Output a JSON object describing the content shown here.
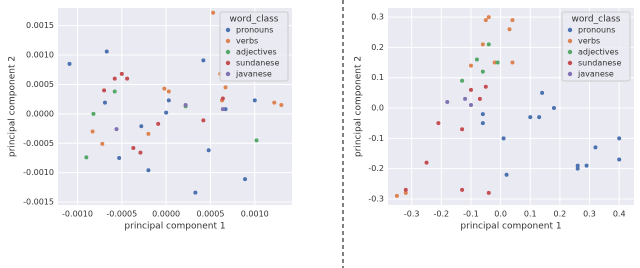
{
  "chart_data": [
    {
      "type": "scatter",
      "xlabel": "principal component 1",
      "ylabel": "principal component 2",
      "xlim": [
        -0.00122,
        0.00142
      ],
      "ylim": [
        -0.00155,
        0.0018
      ],
      "xticks": [
        {
          "value": -0.001,
          "label": "-0.0010"
        },
        -0.0005,
        {
          "value": 0,
          "label": "0.0000"
        },
        0.0005,
        {
          "value": 0.001,
          "label": "0.0010"
        }
      ],
      "yticks": [
        -0.0015,
        {
          "value": -0.001,
          "label": "-0.0010"
        },
        -0.0005,
        {
          "value": 0,
          "label": "0.0000"
        },
        0.0005,
        {
          "value": 0.001,
          "label": "0.0010"
        },
        0.0015
      ],
      "grid": true,
      "legend_title": "word_class",
      "legend_loc": "upper right",
      "series": [
        {
          "name": "pronouns",
          "color": "#4c72b0",
          "x": [
            -0.00109,
            -0.00067,
            -0.00069,
            -0.00028,
            -0.0002,
            0.0,
            3e-05,
            0.00042,
            0.00048,
            0.00033,
            0.001,
            0.00089,
            0.00067,
            -0.00053
          ],
          "y": [
            0.00085,
            0.00106,
            0.00019,
            -0.00021,
            -0.00096,
            2e-05,
            0.00023,
            0.00091,
            -0.00062,
            -0.00134,
            0.00023,
            -0.00111,
            8e-05,
            -0.00075
          ]
        },
        {
          "name": "verbs",
          "color": "#dd8452",
          "x": [
            0.00053,
            -2e-05,
            3e-05,
            0.00061,
            0.00063,
            0.00122,
            0.0013,
            -0.0002,
            -0.00083,
            -0.00072,
            0.00067
          ],
          "y": [
            0.00172,
            0.00043,
            0.00038,
            0.00068,
            0.00023,
            0.00019,
            0.00015,
            -0.00034,
            -0.0003,
            -0.00051,
            0.00045
          ]
        },
        {
          "name": "adjectives",
          "color": "#55a868",
          "x": [
            -0.00082,
            -0.00058,
            -0.0009,
            0.00022,
            0.00102
          ],
          "y": [
            0.0,
            0.00038,
            -0.00074,
            0.00013,
            -0.00045
          ]
        },
        {
          "name": "sundanese",
          "color": "#c44e52",
          "x": [
            -0.0007,
            -0.00058,
            -0.0005,
            -0.00044,
            -0.00037,
            -0.00029,
            -9e-05,
            0.00042,
            0.00064
          ],
          "y": [
            0.0004,
            0.0006,
            0.00068,
            0.0006,
            -0.00058,
            -0.00066,
            -0.00017,
            -0.00011,
            0.00026
          ]
        },
        {
          "name": "javanese",
          "color": "#8172b3",
          "x": [
            -0.00056,
            0.00022,
            0.00064
          ],
          "y": [
            -0.00026,
            0.00015,
            8e-05
          ]
        }
      ]
    },
    {
      "type": "scatter",
      "xlabel": "principal component 1",
      "ylabel": "principal component 2",
      "xlim": [
        -0.38,
        0.45
      ],
      "ylim": [
        -0.32,
        0.33
      ],
      "xticks": [
        -0.3,
        -0.2,
        -0.1,
        {
          "value": 0,
          "label": "0.0"
        },
        0.1,
        0.2,
        0.3,
        0.4
      ],
      "yticks": [
        -0.3,
        -0.2,
        -0.1,
        {
          "value": 0,
          "label": "0.0"
        },
        0.1,
        0.2,
        0.3
      ],
      "grid": true,
      "legend_title": "word_class",
      "legend_loc": "upper right",
      "series": [
        {
          "name": "pronouns",
          "color": "#4c72b0",
          "x": [
            -0.06,
            -0.06,
            0.01,
            0.02,
            0.1,
            0.14,
            0.13,
            0.18,
            0.26,
            0.26,
            0.29,
            0.32,
            0.4,
            0.4
          ],
          "y": [
            -0.02,
            -0.05,
            -0.1,
            -0.22,
            -0.03,
            0.05,
            -0.03,
            0.0,
            -0.19,
            -0.2,
            -0.19,
            -0.13,
            -0.1,
            -0.17
          ]
        },
        {
          "name": "verbs",
          "color": "#dd8452",
          "x": [
            -0.05,
            -0.04,
            0.04,
            0.03,
            0.04,
            -0.02,
            -0.06,
            -0.35,
            -0.32,
            -0.1
          ],
          "y": [
            0.29,
            0.3,
            0.29,
            0.26,
            0.15,
            0.15,
            0.21,
            -0.29,
            -0.28,
            0.14
          ]
        },
        {
          "name": "adjectives",
          "color": "#55a868",
          "x": [
            -0.13,
            -0.08,
            -0.04,
            -0.01,
            -0.06
          ],
          "y": [
            0.09,
            0.16,
            0.21,
            0.15,
            0.12
          ]
        },
        {
          "name": "sundanese",
          "color": "#c44e52",
          "x": [
            -0.32,
            -0.25,
            -0.21,
            -0.13,
            -0.13,
            -0.1,
            -0.07,
            -0.04,
            -0.05
          ],
          "y": [
            -0.27,
            -0.18,
            -0.05,
            -0.07,
            -0.27,
            0.06,
            0.03,
            -0.28,
            0.07
          ]
        },
        {
          "name": "javanese",
          "color": "#8172b3",
          "x": [
            -0.18,
            -0.12,
            -0.1
          ],
          "y": [
            0.02,
            0.03,
            0.01
          ]
        }
      ]
    }
  ]
}
